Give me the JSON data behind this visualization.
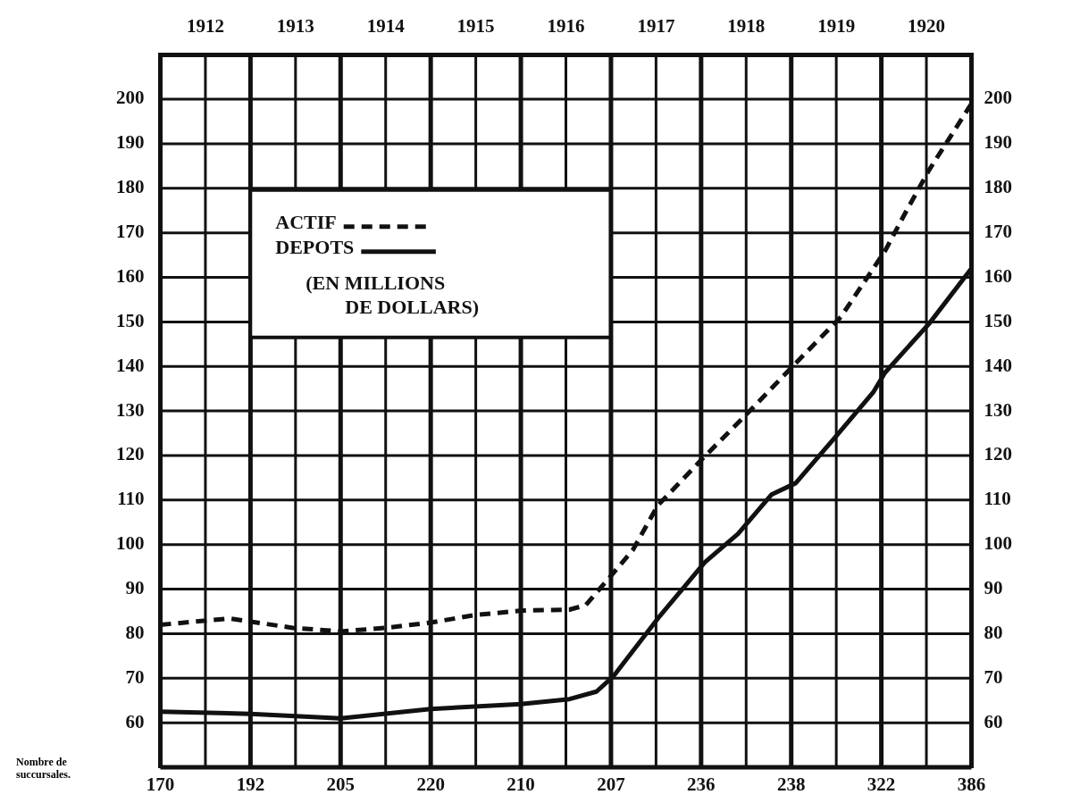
{
  "chart_data": {
    "type": "line",
    "xlabel": "Nombre de succursales.",
    "ylabel": "(EN MILLIONS DE DOLLARS)",
    "annotations": [
      "170",
      "192",
      "205",
      "220",
      "210",
      "207",
      "236",
      "238",
      "322",
      "386"
    ],
    "xlim": [
      1911.5,
      1920.5
    ],
    "xticks": [
      {
        "value": 1911.5,
        "label": null
      },
      1912,
      {
        "value": 1912.5,
        "label": null
      },
      1913,
      {
        "value": 1913.5,
        "label": null
      },
      1914,
      {
        "value": 1914.5,
        "label": null
      },
      1915,
      {
        "value": 1915.5,
        "label": null
      },
      1916,
      {
        "value": 1916.5,
        "label": null
      },
      1917,
      {
        "value": 1917.5,
        "label": null
      },
      1918,
      {
        "value": 1918.5,
        "label": null
      },
      1919,
      {
        "value": 1919.5,
        "label": null
      },
      1920,
      {
        "value": 1920.5,
        "label": null
      }
    ],
    "ylim": [
      50,
      210
    ],
    "yticks": [
      60,
      70,
      80,
      90,
      100,
      110,
      120,
      130,
      140,
      150,
      160,
      170,
      180,
      190,
      200
    ],
    "y2lim": [
      50,
      210
    ],
    "y2ticks": [
      60,
      70,
      80,
      90,
      100,
      110,
      120,
      130,
      140,
      150,
      160,
      170,
      180,
      190,
      200
    ],
    "grid": true,
    "legend": "top left",
    "marker": "none",
    "series": [
      {
        "name": "ACTIF",
        "color": "#111111",
        "line_style": "dashed",
        "x": [
          1911.5,
          1912.27,
          1912.97,
          1913.5,
          1914,
          1914.5,
          1915,
          1915.52,
          1916.04,
          1916.22,
          1916.53,
          1916.74,
          1917.02,
          1917.54,
          1918.04,
          1918.52,
          1919.05,
          1919.54,
          1919.78,
          1920.03,
          1920.5
        ],
        "values": [
          82,
          83.4,
          81.3,
          80.5,
          81.3,
          82.5,
          84.2,
          85.2,
          85.4,
          86.4,
          93.7,
          98.7,
          108.8,
          119.8,
          130,
          140.1,
          151.1,
          165.9,
          175,
          184.1,
          199
        ]
      },
      {
        "name": "DEPOTS",
        "color": "#111111",
        "line_style": "solid",
        "x": [
          1911.5,
          1912.5,
          1913.5,
          1914.5,
          1915.5,
          1916.04,
          1916.34,
          1916.53,
          1917.02,
          1917.54,
          1917.91,
          1918.28,
          1918.55,
          1919,
          1919.41,
          1919.54,
          1920.03,
          1920.5
        ],
        "values": [
          62.5,
          62,
          61,
          63.1,
          64.2,
          65.3,
          67,
          70.5,
          83.4,
          96,
          102.4,
          111.2,
          113.8,
          124.4,
          134.2,
          138.6,
          149.6,
          162
        ]
      }
    ]
  }
}
